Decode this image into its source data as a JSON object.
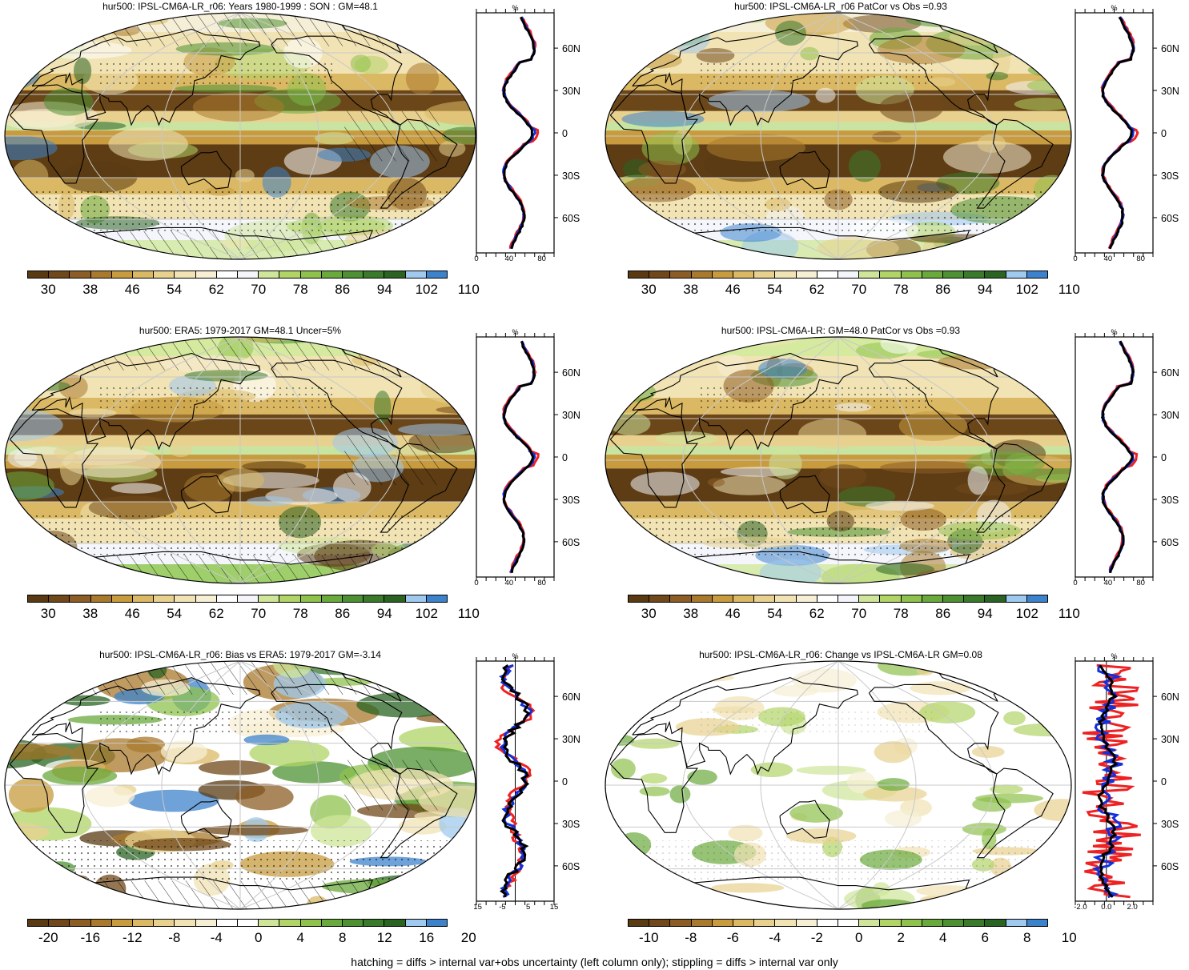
{
  "footer": "hatching = diffs > internal var+obs uncertainty (left column only); stippling = diffs > internal var only",
  "lat_labels": [
    "60N",
    "30N",
    "0",
    "30S",
    "60S"
  ],
  "lat_values": [
    60,
    30,
    0,
    -30,
    -60
  ],
  "profile_units": "%",
  "colors": {
    "abs": [
      "#5a3a12",
      "#70481a",
      "#8c5d24",
      "#a97a2e",
      "#c79b3e",
      "#dbb964",
      "#e8d18f",
      "#f1e3b4",
      "#f7efd4",
      "#ffffff",
      "#f3f5fa",
      "#cfe59a",
      "#b0d466",
      "#8fc14d",
      "#6aaa3c",
      "#4d9133",
      "#3a7a2b",
      "#2a6322",
      "#9fc9ee",
      "#3d83cc"
    ],
    "diff": [
      "#5a3a12",
      "#70481a",
      "#8c5d24",
      "#a97a2e",
      "#c79b3e",
      "#dbb964",
      "#e8d18f",
      "#f1e3b4",
      "#f7efd4",
      "#ffffff",
      "#ffffff",
      "#cfe59a",
      "#b0d466",
      "#8fc14d",
      "#6aaa3c",
      "#4d9133",
      "#3a7a2b",
      "#2a6322",
      "#9fc9ee",
      "#3d83cc"
    ],
    "line_red": "#ee2222",
    "line_blue": "#1030dd",
    "line_black": "#000000"
  },
  "panels": [
    {
      "title": "hur500: IPSL-CM6A-LR_r06: Years 1980-1999 : SON : GM=48.1",
      "mode": "abs",
      "hatch": true,
      "colorbar_labels": [
        "30",
        "38",
        "46",
        "54",
        "62",
        "70",
        "78",
        "86",
        "94",
        "102",
        "110"
      ],
      "profile_ticks": [
        "0",
        "40",
        "80"
      ],
      "profile_tick_values": [
        0,
        40,
        80
      ],
      "profile_range": [
        0,
        95
      ],
      "lat_label_side": "right"
    },
    {
      "title": "hur500: IPSL-CM6A-LR_r06 PatCor vs Obs =0.93",
      "mode": "abs",
      "hatch": false,
      "colorbar_labels": [
        "30",
        "38",
        "46",
        "54",
        "62",
        "70",
        "78",
        "86",
        "94",
        "102",
        "110"
      ],
      "profile_ticks": [
        "0",
        "40",
        "80"
      ],
      "profile_tick_values": [
        0,
        40,
        80
      ],
      "profile_range": [
        0,
        95
      ],
      "lat_label_side": "right"
    },
    {
      "title": "hur500: ERA5: 1979-2017 GM=48.1 Uncer=5%",
      "mode": "abs",
      "hatch": true,
      "colorbar_labels": [
        "30",
        "38",
        "46",
        "54",
        "62",
        "70",
        "78",
        "86",
        "94",
        "102",
        "110"
      ],
      "profile_ticks": [
        "0",
        "40",
        "80"
      ],
      "profile_tick_values": [
        0,
        40,
        80
      ],
      "profile_range": [
        0,
        95
      ],
      "lat_label_side": "right"
    },
    {
      "title": "hur500: IPSL-CM6A-LR: GM=48.0 PatCor vs Obs =0.93",
      "mode": "abs",
      "hatch": false,
      "colorbar_labels": [
        "30",
        "38",
        "46",
        "54",
        "62",
        "70",
        "78",
        "86",
        "94",
        "102",
        "110"
      ],
      "profile_ticks": [
        "0",
        "40",
        "80"
      ],
      "profile_tick_values": [
        0,
        40,
        80
      ],
      "profile_range": [
        0,
        95
      ],
      "lat_label_side": "right"
    },
    {
      "title": "hur500: IPSL-CM6A-LR_r06: Bias vs ERA5: 1979-2017  GM=-3.14",
      "mode": "diff",
      "hatch": true,
      "colorbar_labels": [
        "-20",
        "-16",
        "-12",
        "-8",
        "-4",
        "0",
        "4",
        "8",
        "12",
        "16",
        "20"
      ],
      "profile_ticks": [
        "-15",
        "-5",
        "5",
        "15"
      ],
      "profile_tick_values": [
        -15,
        -5,
        5,
        15
      ],
      "profile_range": [
        -15,
        15
      ],
      "lat_label_side": "right"
    },
    {
      "title": "hur500: IPSL-CM6A-LR_r06: Change vs IPSL-CM6A-LR GM=0.08",
      "mode": "change",
      "hatch": false,
      "colorbar_labels": [
        "-10",
        "-8",
        "-6",
        "-4",
        "-2",
        "0",
        "2",
        "4",
        "6",
        "8",
        "10"
      ],
      "profile_ticks": [
        "-2.0",
        "0.0",
        "2.0"
      ],
      "profile_tick_values": [
        -2,
        0,
        2
      ],
      "profile_range": [
        -2.4,
        3.6
      ],
      "lat_label_side": "right"
    }
  ]
}
